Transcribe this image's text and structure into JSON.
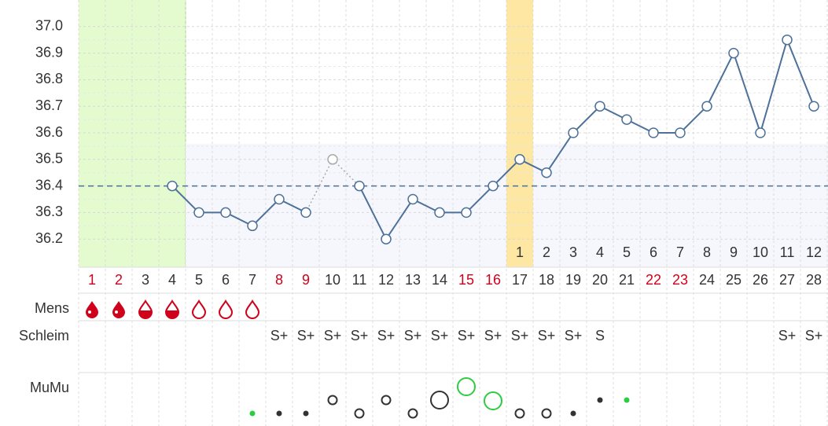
{
  "chart_data": {
    "type": "line",
    "categories": [
      "1",
      "2",
      "3",
      "4",
      "5",
      "6",
      "7",
      "8",
      "9",
      "10",
      "11",
      "12",
      "13",
      "14",
      "15",
      "16",
      "17",
      "18",
      "19",
      "20",
      "21",
      "22",
      "23",
      "24",
      "25",
      "26",
      "27",
      "28"
    ],
    "category_colors": [
      "#d0021b",
      "#d0021b",
      "#333333",
      "#333333",
      "#333333",
      "#333333",
      "#333333",
      "#d0021b",
      "#d0021b",
      "#333333",
      "#333333",
      "#333333",
      "#333333",
      "#333333",
      "#d0021b",
      "#d0021b",
      "#333333",
      "#333333",
      "#333333",
      "#333333",
      "#333333",
      "#d0021b",
      "#d0021b",
      "#333333",
      "#333333",
      "#333333",
      "#333333",
      "#333333"
    ],
    "series": [
      {
        "color": "#4d7199",
        "values": [
          null,
          null,
          null,
          36.4,
          36.3,
          36.3,
          36.25,
          36.35,
          36.3,
          null,
          36.4,
          36.2,
          36.35,
          36.3,
          36.3,
          36.4,
          36.5,
          36.45,
          36.6,
          36.7,
          36.65,
          36.6,
          36.6,
          36.7,
          36.9,
          36.6,
          36.95,
          36.7
        ]
      },
      {
        "color": "#aaaaaa",
        "line": "dotted",
        "values": [
          null,
          null,
          null,
          null,
          null,
          null,
          null,
          null,
          null,
          36.5,
          null,
          null,
          null,
          null,
          null,
          null,
          null,
          null,
          null,
          null,
          null,
          null,
          null,
          null,
          null,
          null,
          null,
          null
        ]
      }
    ],
    "coverline": 36.4,
    "luteal_days": [
      null,
      null,
      null,
      null,
      null,
      null,
      null,
      null,
      null,
      null,
      null,
      null,
      null,
      null,
      null,
      null,
      1,
      2,
      3,
      4,
      5,
      6,
      7,
      8,
      9,
      10,
      11,
      12
    ],
    "row_labels": [
      "Mens",
      "Schleim",
      "MuMu"
    ],
    "schleim": [
      null,
      null,
      null,
      null,
      null,
      null,
      null,
      "S+",
      "S+",
      "S+",
      "S+",
      "S+",
      "S+",
      "S+",
      "S+",
      "S+",
      "S+",
      "S+",
      "S+",
      "S",
      null,
      null,
      null,
      null,
      null,
      null,
      "S+",
      "S+"
    ],
    "ylim": [
      36.1,
      37.1
    ],
    "yticks": [
      36.2,
      36.3,
      36.4,
      36.5,
      36.6,
      36.7,
      36.8,
      36.9,
      {
        "value": 37,
        "label": "37.0"
      }
    ],
    "grid": true
  }
}
